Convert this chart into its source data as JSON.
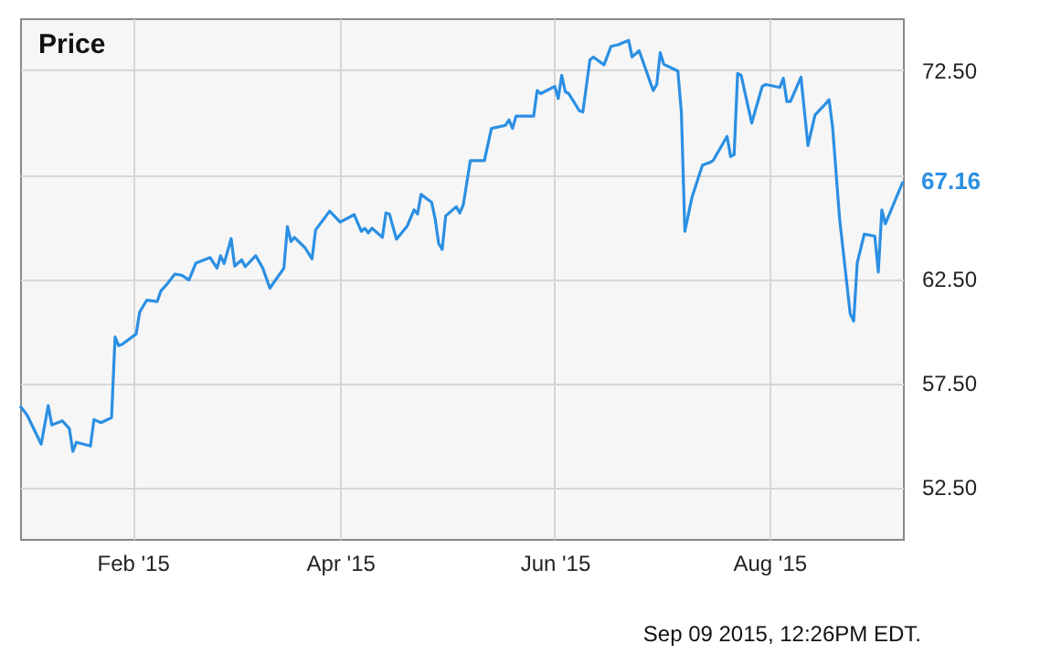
{
  "chart_data": {
    "type": "line",
    "title": "Price",
    "x": [
      "2014-12-31",
      "2015-01-02",
      "2015-01-06",
      "2015-01-08",
      "2015-01-09",
      "2015-01-12",
      "2015-01-14",
      "2015-01-15",
      "2015-01-16",
      "2015-01-20",
      "2015-01-21",
      "2015-01-23",
      "2015-01-26",
      "2015-01-27",
      "2015-01-28",
      "2015-01-29",
      "2015-02-02",
      "2015-02-03",
      "2015-02-05",
      "2015-02-08",
      "2015-02-09",
      "2015-02-11",
      "2015-02-13",
      "2015-02-15",
      "2015-02-17",
      "2015-02-19",
      "2015-02-23",
      "2015-02-25",
      "2015-02-26",
      "2015-02-27",
      "2015-03-01",
      "2015-03-02",
      "2015-03-04",
      "2015-03-05",
      "2015-03-08",
      "2015-03-10",
      "2015-03-12",
      "2015-03-16",
      "2015-03-17",
      "2015-03-18",
      "2015-03-19",
      "2015-03-22",
      "2015-03-24",
      "2015-03-25",
      "2015-03-29",
      "2015-04-01",
      "2015-04-05",
      "2015-04-07",
      "2015-04-08",
      "2015-04-09",
      "2015-04-10",
      "2015-04-13",
      "2015-04-14",
      "2015-04-15",
      "2015-04-17",
      "2015-04-20",
      "2015-04-22",
      "2015-04-23",
      "2015-04-24",
      "2015-04-27",
      "2015-04-28",
      "2015-04-29",
      "2015-04-30",
      "2015-05-01",
      "2015-05-04",
      "2015-05-05",
      "2015-05-06",
      "2015-05-08",
      "2015-05-12",
      "2015-05-14",
      "2015-05-18",
      "2015-05-19",
      "2015-05-20",
      "2015-05-21",
      "2015-05-26",
      "2015-05-27",
      "2015-05-28",
      "2015-06-01",
      "2015-06-02",
      "2015-06-03",
      "2015-06-04",
      "2015-06-05",
      "2015-06-08",
      "2015-06-09",
      "2015-06-11",
      "2015-06-12",
      "2015-06-15",
      "2015-06-17",
      "2015-06-19",
      "2015-06-22",
      "2015-06-23",
      "2015-06-25",
      "2015-06-29",
      "2015-06-30",
      "2015-07-01",
      "2015-07-02",
      "2015-07-06",
      "2015-07-07",
      "2015-07-08",
      "2015-07-10",
      "2015-07-13",
      "2015-07-15",
      "2015-07-16",
      "2015-07-20",
      "2015-07-21",
      "2015-07-22",
      "2015-07-23",
      "2015-07-24",
      "2015-07-27",
      "2015-07-30",
      "2015-07-31",
      "2015-08-04",
      "2015-08-05",
      "2015-08-06",
      "2015-08-07",
      "2015-08-10",
      "2015-08-12",
      "2015-08-14",
      "2015-08-17",
      "2015-08-18",
      "2015-08-19",
      "2015-08-21",
      "2015-08-24",
      "2015-08-25",
      "2015-08-26",
      "2015-08-28",
      "2015-08-31",
      "2015-09-01",
      "2015-09-02",
      "2015-09-03",
      "2015-09-08"
    ],
    "series": [
      {
        "color": "#2b8fe3",
        "values": [
          56.38,
          55.94,
          54.55,
          56.4,
          55.47,
          55.67,
          55.3,
          54.2,
          54.64,
          54.46,
          55.73,
          55.58,
          55.82,
          59.7,
          59.28,
          59.34,
          59.84,
          60.9,
          61.46,
          61.4,
          61.9,
          62.28,
          62.72,
          62.66,
          62.43,
          63.25,
          63.51,
          63.0,
          63.6,
          63.22,
          64.42,
          63.1,
          63.4,
          63.07,
          63.6,
          63.0,
          62.04,
          63.0,
          65.0,
          64.28,
          64.48,
          63.98,
          63.45,
          64.83,
          65.74,
          65.21,
          65.57,
          64.77,
          64.92,
          64.69,
          64.92,
          64.48,
          65.65,
          65.6,
          64.39,
          65.01,
          65.8,
          65.6,
          66.54,
          66.16,
          65.37,
          64.19,
          63.9,
          65.51,
          65.95,
          65.65,
          66.04,
          68.16,
          68.16,
          69.71,
          69.86,
          70.12,
          69.71,
          70.3,
          70.3,
          71.53,
          71.38,
          71.73,
          71.15,
          72.26,
          71.47,
          71.38,
          70.56,
          70.5,
          73.0,
          73.14,
          72.76,
          73.65,
          73.73,
          73.94,
          73.14,
          73.44,
          71.53,
          71.82,
          73.35,
          72.79,
          72.47,
          70.5,
          64.77,
          66.39,
          67.95,
          68.07,
          68.16,
          69.33,
          68.36,
          68.45,
          72.35,
          72.26,
          69.97,
          71.73,
          71.82,
          71.68,
          72.12,
          71.0,
          71.0,
          72.17,
          68.89,
          70.36,
          70.89,
          71.09,
          69.77,
          65.36,
          60.81,
          60.46,
          63.25,
          64.63,
          64.54,
          62.81,
          65.8,
          65.13,
          67.16
        ]
      }
    ],
    "xlim": [
      "2014-12-31",
      "2015-09-08"
    ],
    "xticks": [
      {
        "value": "2015-02-01",
        "label": "Feb '15"
      },
      {
        "value": "2015-04-01",
        "label": "Apr '15"
      },
      {
        "value": "2015-06-01",
        "label": "Jun '15"
      },
      {
        "value": "2015-08-01",
        "label": "Aug '15"
      }
    ],
    "ylim": [
      50,
      75
    ],
    "yticks": [
      {
        "value": 52.5,
        "label": "52.50"
      },
      {
        "value": 57.5,
        "label": "57.50"
      },
      {
        "value": 62.5,
        "label": "62.50"
      },
      {
        "value": 67.5,
        "label": null
      },
      {
        "value": 72.5,
        "label": "72.50"
      }
    ],
    "grid": true,
    "marker": "none",
    "line_style": "solid",
    "annotations": [
      {
        "text": "67.16",
        "x": "2015-09-08",
        "y": 67.16
      },
      "Sep 09 2015, 12:26PM EDT."
    ]
  }
}
